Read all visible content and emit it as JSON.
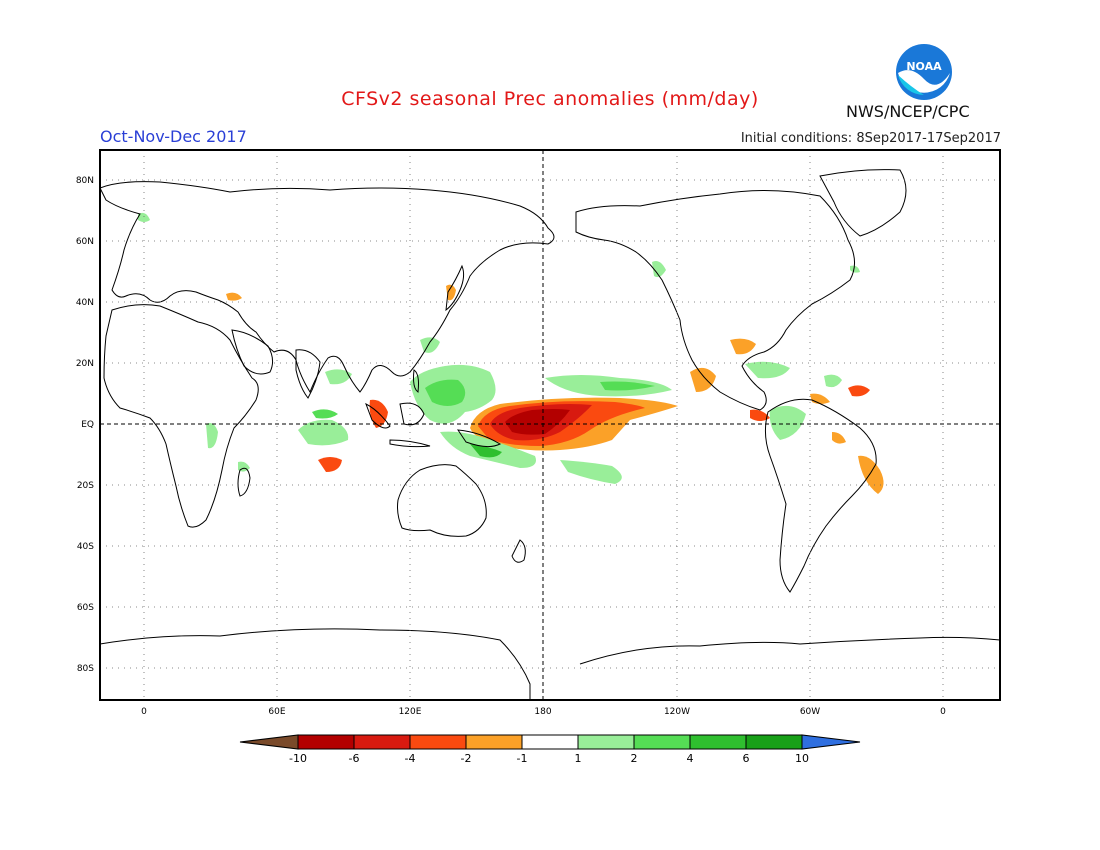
{
  "header": {
    "title": "CFSv2 seasonal Prec anomalies (mm/day)",
    "period": "Oct-Nov-Dec 2017",
    "initial_conditions": "Initial conditions: 8Sep2017-17Sep2017",
    "agency": "NWS/NCEP/CPC",
    "logo_text": "NOAA"
  },
  "map": {
    "lat_labels": [
      "80N",
      "60N",
      "40N",
      "20N",
      "EQ",
      "20S",
      "40S",
      "60S",
      "80S"
    ],
    "lon_labels": [
      "0",
      "60E",
      "120E",
      "180",
      "120W",
      "60W",
      "0"
    ]
  },
  "legend": {
    "labels": [
      "-10",
      "-6",
      "-4",
      "-2",
      "-1",
      "1",
      "2",
      "4",
      "6",
      "10"
    ],
    "colors": [
      "#7a4a2a",
      "#b30000",
      "#d81a10",
      "#fa4a10",
      "#fba128",
      "#ffffff",
      "#99ee99",
      "#55dd55",
      "#2fbf2f",
      "#18a018",
      "#2f6fe0"
    ]
  }
}
